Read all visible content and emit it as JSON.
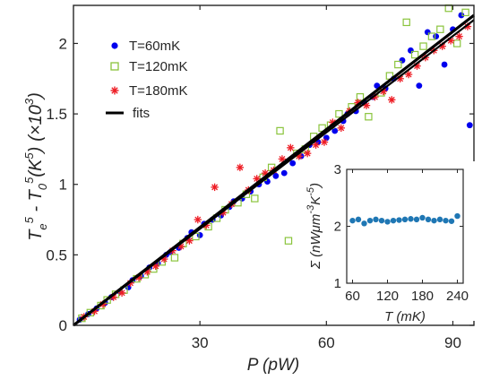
{
  "chart_data": [
    {
      "type": "scatter",
      "xlabel": "P (pW)",
      "ylabel_parts": {
        "t_e": "T",
        "e_sub": "e",
        "pow1": "5",
        "minus": " - ",
        "t_0": "T",
        "zero_sub": "0",
        "pow2": "5",
        "unit_open": "(K",
        "pow3": "5",
        "unit_close": ")",
        "scale": "(×10",
        "pow4": "3",
        "scale_close": ")"
      },
      "xlim": [
        0,
        95
      ],
      "ylim": [
        0,
        2.27
      ],
      "xticks": [
        "30",
        "60",
        "90"
      ],
      "xtick_values": [
        30,
        60,
        90
      ],
      "yticks": [
        "0",
        "0.5",
        "1",
        "1.5",
        "2"
      ],
      "ytick_values": [
        0,
        0.5,
        1,
        1.5,
        2
      ],
      "legend_position": "top-left",
      "series": [
        {
          "name": "T=60mK",
          "color": "#0000ee",
          "marker": "circle",
          "x": [
            1.5,
            3.5,
            5.5,
            7.5,
            9,
            11,
            13,
            14,
            16,
            18,
            20,
            22,
            23,
            25,
            27,
            28,
            30,
            31,
            33,
            35,
            37,
            38,
            40,
            42,
            44,
            46,
            48,
            50,
            52,
            54,
            56,
            58,
            60,
            62,
            64,
            65,
            67,
            69,
            71,
            72,
            74,
            76,
            78,
            80,
            82,
            84,
            86,
            88,
            90,
            92,
            94
          ],
          "y": [
            0.04,
            0.08,
            0.12,
            0.16,
            0.2,
            0.24,
            0.27,
            0.32,
            0.35,
            0.41,
            0.44,
            0.5,
            0.52,
            0.55,
            0.62,
            0.66,
            0.64,
            0.72,
            0.75,
            0.78,
            0.84,
            0.88,
            0.9,
            0.95,
            1.0,
            1.02,
            1.06,
            1.08,
            1.15,
            1.2,
            1.28,
            1.3,
            1.33,
            1.38,
            1.45,
            1.5,
            1.52,
            1.58,
            1.62,
            1.7,
            1.68,
            1.75,
            1.88,
            1.95,
            1.7,
            2.08,
            2.05,
            1.85,
            2.1,
            2.2,
            1.42
          ]
        },
        {
          "name": "T=120mK",
          "color": "#8ac43c",
          "marker": "square",
          "x": [
            2,
            4,
            6.5,
            8,
            10,
            12,
            15,
            17,
            19,
            21,
            24,
            26,
            29,
            32,
            34,
            36,
            39,
            41,
            43,
            45,
            47,
            49,
            51,
            53,
            55,
            57,
            59,
            61,
            63,
            66,
            68,
            70,
            73,
            75,
            77,
            79,
            81,
            83,
            85,
            87,
            89,
            91,
            93
          ],
          "y": [
            0.05,
            0.09,
            0.14,
            0.18,
            0.22,
            0.25,
            0.33,
            0.36,
            0.4,
            0.45,
            0.48,
            0.58,
            0.63,
            0.7,
            0.76,
            0.82,
            0.87,
            0.93,
            0.9,
            1.05,
            1.12,
            1.38,
            0.6,
            1.22,
            1.25,
            1.34,
            1.4,
            1.42,
            1.5,
            1.55,
            1.62,
            1.48,
            1.65,
            1.77,
            1.85,
            2.15,
            1.92,
            1.98,
            2.05,
            2.1,
            2.25,
            2.0,
            2.22
          ]
        },
        {
          "name": "T=180mK",
          "color": "#ee1c24",
          "marker": "asterisk",
          "x": [
            2.5,
            5,
            7,
            9.5,
            11.5,
            13.5,
            15.5,
            17.5,
            19.5,
            21.5,
            23.5,
            25.5,
            27.5,
            29.5,
            31.5,
            33.5,
            35.5,
            37.5,
            39.5,
            41.5,
            43.5,
            45.5,
            47.5,
            49.5,
            51.5,
            53.5,
            55.5,
            57.5,
            59.5,
            61.5,
            63.5,
            65.5,
            67.5,
            69.5,
            71.5,
            73.5,
            75.5,
            77.5,
            79.5,
            81.5,
            83.5,
            85.5,
            87.5,
            89.5,
            91.5,
            93.5
          ],
          "y": [
            0.06,
            0.1,
            0.15,
            0.2,
            0.23,
            0.3,
            0.34,
            0.38,
            0.42,
            0.47,
            0.53,
            0.56,
            0.6,
            0.75,
            0.71,
            0.98,
            0.8,
            0.86,
            1.12,
            0.96,
            1.04,
            1.08,
            1.1,
            1.18,
            1.26,
            1.2,
            1.22,
            1.28,
            1.3,
            1.44,
            1.4,
            1.52,
            1.58,
            1.56,
            1.62,
            1.66,
            1.6,
            1.75,
            1.78,
            1.84,
            1.9,
            1.95,
            1.98,
            2.02,
            2.05,
            2.12
          ]
        },
        {
          "name": "fits",
          "color": "#000000",
          "marker": "line",
          "x": [
            0,
            95
          ],
          "y": [
            0,
            2.2
          ]
        }
      ]
    },
    {
      "type": "scatter",
      "position": "inset, bottom-right",
      "xlabel": "T (mK)",
      "ylabel_parts": {
        "sigma": "Σ",
        "unit_a": " (nWμm",
        "pow_a": "-3",
        "unit_b": "K",
        "pow_b": "-5",
        "unit_c": ")"
      },
      "xlim": [
        50,
        250
      ],
      "ylim": [
        1,
        3
      ],
      "xticks": [
        "60",
        "120",
        "180",
        "240"
      ],
      "xtick_values": [
        60,
        120,
        180,
        240
      ],
      "yticks": [
        "1",
        "2",
        "3"
      ],
      "ytick_values": [
        1,
        2,
        3
      ],
      "series": [
        {
          "color": "#1f77b4",
          "marker": "circle",
          "x": [
            60,
            70,
            80,
            90,
            100,
            110,
            120,
            130,
            140,
            150,
            160,
            170,
            180,
            190,
            200,
            210,
            220,
            230,
            240
          ],
          "y": [
            2.1,
            2.12,
            2.05,
            2.1,
            2.12,
            2.1,
            2.08,
            2.1,
            2.11,
            2.12,
            2.13,
            2.12,
            2.15,
            2.12,
            2.1,
            2.12,
            2.1,
            2.09,
            2.18
          ]
        }
      ]
    }
  ]
}
